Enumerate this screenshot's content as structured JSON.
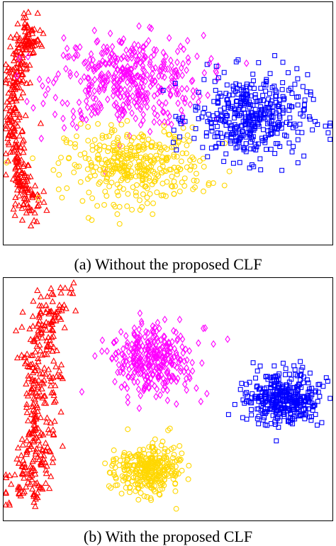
{
  "captions": {
    "a": "(a) Without the proposed CLF",
    "b": "(b) With the proposed CLF"
  },
  "chart_data": [
    {
      "type": "scatter",
      "title": "",
      "xlabel": "",
      "ylabel": "",
      "xlim": [
        -1,
        1
      ],
      "ylim": [
        -1,
        1
      ],
      "grid": false,
      "legend": "none",
      "clusters": [
        {
          "marker": "triangle",
          "color": "#ff0000",
          "count": 320,
          "center": [
            -0.9,
            0.05
          ],
          "spread": [
            0.05,
            0.26
          ],
          "shape": "crescent"
        },
        {
          "marker": "diamond",
          "color": "#ff00ff",
          "count": 420,
          "center": [
            -0.25,
            0.35
          ],
          "spread": [
            0.42,
            0.34
          ]
        },
        {
          "marker": "circle",
          "color": "#ffd700",
          "count": 380,
          "center": [
            -0.2,
            -0.35
          ],
          "spread": [
            0.38,
            0.28
          ]
        },
        {
          "marker": "square",
          "color": "#0000ff",
          "count": 420,
          "center": [
            0.5,
            0.05
          ],
          "spread": [
            0.32,
            0.32
          ]
        }
      ]
    },
    {
      "type": "scatter",
      "title": "",
      "xlabel": "",
      "ylabel": "",
      "xlim": [
        -1,
        1
      ],
      "ylim": [
        -1,
        1
      ],
      "grid": false,
      "legend": "none",
      "clusters": [
        {
          "marker": "triangle",
          "color": "#ff0000",
          "count": 340,
          "center": [
            -0.78,
            0.02
          ],
          "spread": [
            0.12,
            0.62
          ],
          "shape": "band"
        },
        {
          "marker": "diamond",
          "color": "#ff00ff",
          "count": 330,
          "center": [
            -0.1,
            0.32
          ],
          "spread": [
            0.24,
            0.26
          ]
        },
        {
          "marker": "circle",
          "color": "#ffd700",
          "count": 320,
          "center": [
            -0.12,
            -0.58
          ],
          "spread": [
            0.18,
            0.18
          ]
        },
        {
          "marker": "square",
          "color": "#0000ff",
          "count": 380,
          "center": [
            0.7,
            0.0
          ],
          "spread": [
            0.2,
            0.2
          ]
        }
      ]
    }
  ]
}
